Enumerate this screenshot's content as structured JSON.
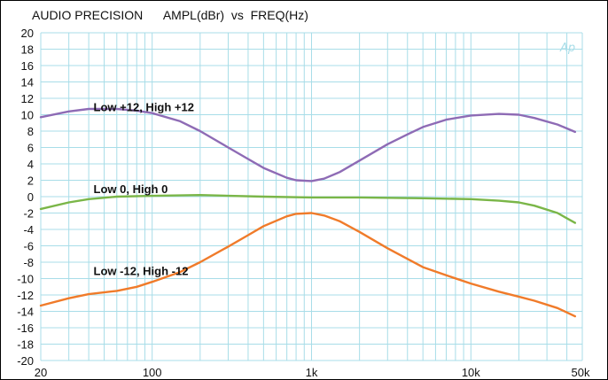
{
  "header": {
    "title": "AUDIO PRECISION",
    "measurement": "AMPL(dBr)  vs  FREQ(Hz)"
  },
  "watermark": "Ap",
  "chart_data": {
    "type": "line",
    "title": "",
    "xlabel": "FREQ(Hz)",
    "ylabel": "AMPL(dBr)",
    "x_scale": "log",
    "xlim": [
      20,
      50000
    ],
    "ylim": [
      -20,
      20
    ],
    "grid": true,
    "x_ticks": [
      20,
      100,
      1000,
      10000,
      50000
    ],
    "x_tick_labels": [
      "20",
      "100",
      "1k",
      "10k",
      "50k"
    ],
    "y_ticks": [
      20,
      18,
      16,
      14,
      12,
      10,
      8,
      6,
      4,
      2,
      0,
      -2,
      -4,
      -6,
      -8,
      -10,
      -12,
      -14,
      -16,
      -18,
      -20
    ],
    "grid_color": "#a8dde8",
    "series": [
      {
        "name": "Low +12, High +12",
        "color": "#8e6bb5",
        "label_pos": [
          50,
          11
        ],
        "points": [
          [
            20,
            9.7
          ],
          [
            30,
            10.4
          ],
          [
            40,
            10.7
          ],
          [
            60,
            10.7
          ],
          [
            80,
            10.5
          ],
          [
            100,
            10.2
          ],
          [
            150,
            9.2
          ],
          [
            200,
            8.0
          ],
          [
            300,
            6.0
          ],
          [
            400,
            4.6
          ],
          [
            500,
            3.5
          ],
          [
            700,
            2.3
          ],
          [
            800,
            2.0
          ],
          [
            1000,
            1.9
          ],
          [
            1200,
            2.2
          ],
          [
            1500,
            3.0
          ],
          [
            2000,
            4.4
          ],
          [
            3000,
            6.4
          ],
          [
            4000,
            7.6
          ],
          [
            5000,
            8.5
          ],
          [
            7000,
            9.4
          ],
          [
            10000,
            9.9
          ],
          [
            15000,
            10.1
          ],
          [
            20000,
            10.0
          ],
          [
            25000,
            9.6
          ],
          [
            35000,
            8.8
          ],
          [
            45000,
            7.9
          ]
        ]
      },
      {
        "name": "Low 0, High 0",
        "color": "#7ab648",
        "label_pos": [
          50,
          1
        ],
        "points": [
          [
            20,
            -1.5
          ],
          [
            30,
            -0.7
          ],
          [
            40,
            -0.3
          ],
          [
            60,
            0.0
          ],
          [
            100,
            0.1
          ],
          [
            200,
            0.2
          ],
          [
            500,
            0.0
          ],
          [
            1000,
            -0.1
          ],
          [
            2000,
            -0.1
          ],
          [
            5000,
            -0.2
          ],
          [
            10000,
            -0.3
          ],
          [
            15000,
            -0.5
          ],
          [
            20000,
            -0.7
          ],
          [
            25000,
            -1.1
          ],
          [
            35000,
            -2.0
          ],
          [
            45000,
            -3.2
          ]
        ]
      },
      {
        "name": "Low -12, High -12",
        "color": "#f07b2a",
        "label_pos": [
          50,
          -9
        ],
        "points": [
          [
            20,
            -13.3
          ],
          [
            30,
            -12.4
          ],
          [
            40,
            -11.9
          ],
          [
            60,
            -11.5
          ],
          [
            80,
            -11.0
          ],
          [
            100,
            -10.4
          ],
          [
            150,
            -9.2
          ],
          [
            200,
            -8.0
          ],
          [
            300,
            -6.1
          ],
          [
            400,
            -4.7
          ],
          [
            500,
            -3.6
          ],
          [
            700,
            -2.4
          ],
          [
            800,
            -2.1
          ],
          [
            1000,
            -2.0
          ],
          [
            1200,
            -2.3
          ],
          [
            1500,
            -3.0
          ],
          [
            2000,
            -4.3
          ],
          [
            3000,
            -6.3
          ],
          [
            4000,
            -7.6
          ],
          [
            5000,
            -8.6
          ],
          [
            7000,
            -9.6
          ],
          [
            10000,
            -10.6
          ],
          [
            15000,
            -11.6
          ],
          [
            20000,
            -12.2
          ],
          [
            25000,
            -12.7
          ],
          [
            35000,
            -13.6
          ],
          [
            45000,
            -14.6
          ]
        ]
      }
    ]
  }
}
